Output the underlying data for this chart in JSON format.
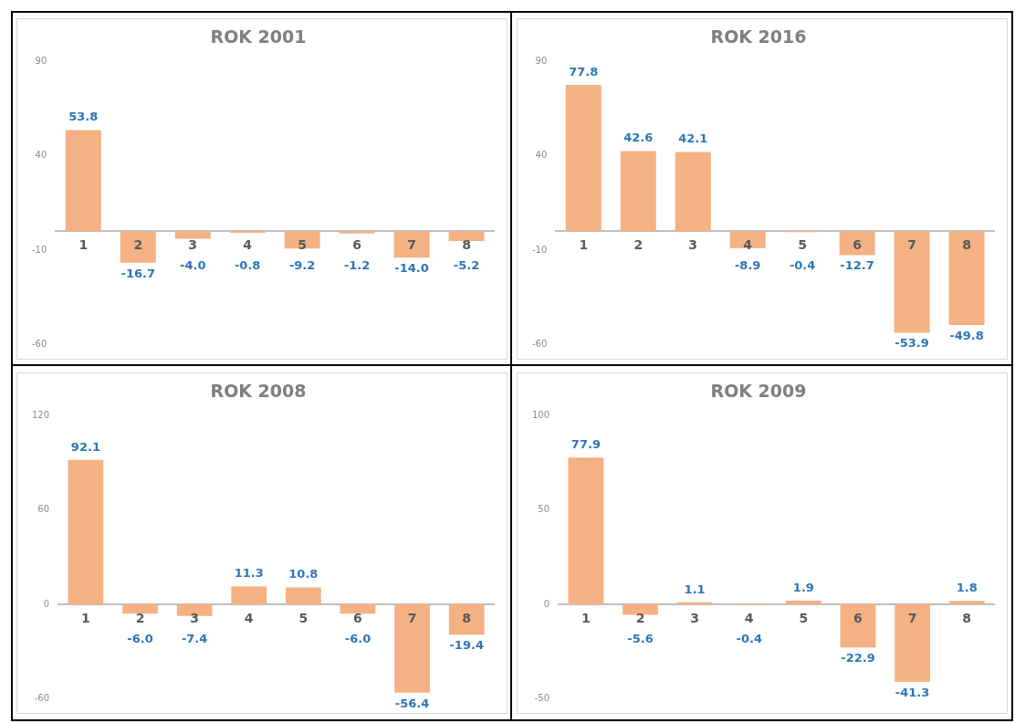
{
  "chart_data": [
    {
      "type": "bar",
      "title": "ROK 2001",
      "categories": [
        "1",
        "2",
        "3",
        "4",
        "5",
        "6",
        "7",
        "8"
      ],
      "values": [
        53.8,
        -16.7,
        -4.0,
        -0.8,
        -9.2,
        -1.2,
        -14.0,
        -5.2
      ],
      "value_labels": [
        "53.8",
        "-16.7",
        "-4.0",
        "-0.8",
        "-9.2",
        "-1.2",
        "-14.0",
        "-5.2"
      ],
      "color": "#f4b183",
      "ylim": [
        -60,
        90
      ],
      "yticks": [
        -60,
        -10,
        40,
        90
      ],
      "grid": false
    },
    {
      "type": "bar",
      "title": "ROK 2016",
      "categories": [
        "1",
        "2",
        "3",
        "4",
        "5",
        "6",
        "7",
        "8"
      ],
      "values": [
        77.8,
        42.6,
        42.1,
        -8.9,
        -0.4,
        -12.7,
        -53.9,
        -49.8
      ],
      "value_labels": [
        "77.8",
        "42.6",
        "42.1",
        "-8.9",
        "-0.4",
        "-12.7",
        "-53.9",
        "-49.8"
      ],
      "color": "#f4b183",
      "ylim": [
        -60,
        90
      ],
      "yticks": [
        -60,
        -10,
        40,
        90
      ],
      "grid": false
    },
    {
      "type": "bar",
      "title": "ROK 2008",
      "categories": [
        "1",
        "2",
        "3",
        "4",
        "5",
        "6",
        "7",
        "8"
      ],
      "values": [
        92.1,
        -6.0,
        -7.4,
        11.3,
        10.8,
        -6.0,
        -56.4,
        -19.4
      ],
      "value_labels": [
        "92.1",
        "-6.0",
        "-7.4",
        "11.3",
        "10.8",
        "-6.0",
        "-56.4",
        "-19.4"
      ],
      "color": "#f4b183",
      "ylim": [
        -60,
        120
      ],
      "yticks": [
        -60,
        0,
        60,
        120
      ],
      "grid": false
    },
    {
      "type": "bar",
      "title": "ROK 2009",
      "categories": [
        "1",
        "2",
        "3",
        "4",
        "5",
        "6",
        "7",
        "8"
      ],
      "values": [
        77.9,
        -5.6,
        1.1,
        -0.4,
        1.9,
        -22.9,
        -41.3,
        1.8
      ],
      "value_labels": [
        "77.9",
        "-5.6",
        "1.1",
        "-0.4",
        "1.9",
        "-22.9",
        "-41.3",
        "1.8"
      ],
      "color": "#f4b183",
      "ylim": [
        -50,
        100
      ],
      "yticks": [
        -50,
        0,
        50,
        100
      ],
      "grid": false
    }
  ]
}
